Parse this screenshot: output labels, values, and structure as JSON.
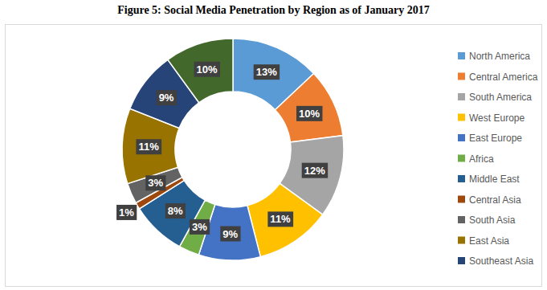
{
  "chart_data": {
    "type": "pie",
    "title": "Figure 5: Social Media Penetration by Region as of January 2017",
    "categories": [
      "North America",
      "Central America",
      "South America",
      "West Europe",
      "East Europe",
      "Africa",
      "Middle East",
      "Central Asia",
      "South Asia",
      "East Asia",
      "Southeast Asia",
      null
    ],
    "values": [
      13,
      10,
      12,
      11,
      9,
      3,
      8,
      1,
      3,
      11,
      9,
      10
    ],
    "value_labels": [
      "13%",
      "10%",
      "12%",
      "11%",
      "9%",
      "3%",
      "8%",
      "1%",
      "3%",
      "11%",
      "9%",
      "10%"
    ],
    "colors": [
      "#5b9bd5",
      "#ed7d31",
      "#a5a5a5",
      "#ffc000",
      "#4472c4",
      "#70ad47",
      "#255e91",
      "#9e480e",
      "#636363",
      "#997300",
      "#264478",
      "#43682b"
    ],
    "data_labels": true,
    "legend": "right"
  }
}
